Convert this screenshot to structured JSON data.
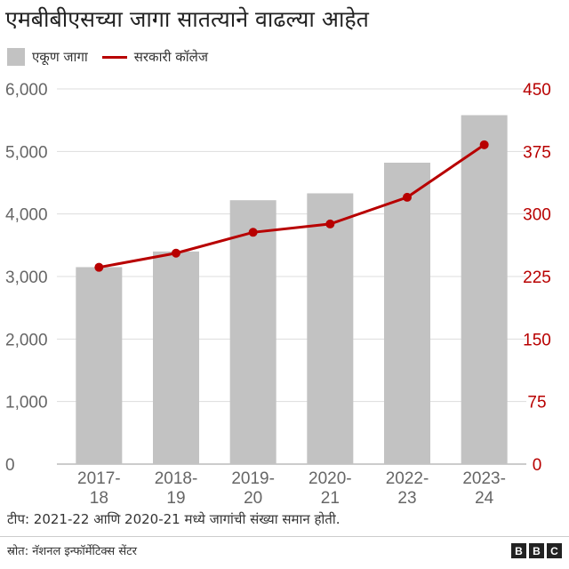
{
  "chart_data": {
    "type": "bar",
    "title": "एमबीबीएसच्या जागा सातत्याने वाढल्या आहेत",
    "categories": [
      [
        "2017-",
        "18"
      ],
      [
        "2018-",
        "19"
      ],
      [
        "2019-",
        "20"
      ],
      [
        "2020-",
        "21"
      ],
      [
        "2022-",
        "23"
      ],
      [
        "2023-",
        "24"
      ]
    ],
    "series": [
      {
        "name": "एकूण जागा",
        "type": "bar",
        "axis": "left",
        "values": [
          3150,
          3400,
          4220,
          4330,
          4820,
          5580
        ],
        "color": "#c2c2c2"
      },
      {
        "name": "सरकारी कॉलेज",
        "type": "line",
        "axis": "right",
        "values": [
          236,
          253,
          278,
          288,
          320,
          383
        ],
        "color": "#b80000"
      }
    ],
    "y_left": {
      "ticks": [
        0,
        1000,
        2000,
        3000,
        4000,
        5000,
        6000
      ],
      "tick_labels": [
        "0",
        "1,000",
        "2,000",
        "3,000",
        "4,000",
        "5,000",
        "6,000"
      ],
      "ylim": [
        0,
        6000
      ]
    },
    "y_right": {
      "ticks": [
        0,
        75,
        150,
        225,
        300,
        375,
        450
      ],
      "tick_labels": [
        "0",
        "75",
        "150",
        "225",
        "300",
        "375",
        "450"
      ],
      "ylim": [
        0,
        450
      ],
      "color": "#b80000"
    },
    "grid": true,
    "legend_position": "top-left"
  },
  "note": "टीप: 2021-22 आणि 2020-21 मध्ये जागांची संख्या समान होती.",
  "source": "स्रोत: नॅशनल इन्फॉर्मेटिक्स सेंटर",
  "logo": {
    "letters": [
      "B",
      "B",
      "C"
    ]
  },
  "colors": {
    "grid": "#dddddd",
    "axis_text": "#666666",
    "accent": "#b80000"
  }
}
